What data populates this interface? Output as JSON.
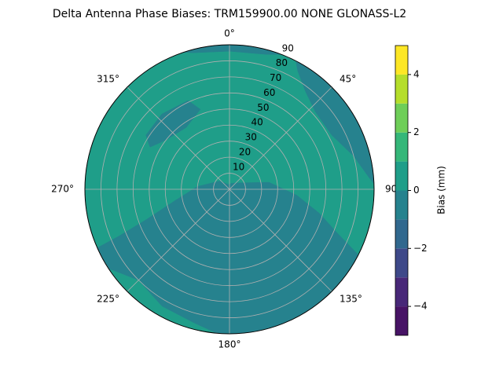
{
  "chart_data": {
    "type": "polar_contour",
    "title": "Delta Antenna Phase Biases: TRM159900.00    NONE GLONASS-L2",
    "rlim": [
      0,
      90
    ],
    "rticks": [
      10,
      20,
      30,
      40,
      50,
      60,
      70,
      80,
      90
    ],
    "theta_ticks": [
      {
        "value": 0,
        "label": "0°"
      },
      {
        "value": 45,
        "label": "45°"
      },
      {
        "value": 90,
        "label": "90°"
      },
      {
        "value": 135,
        "label": "135°"
      },
      {
        "value": 180,
        "label": "180°"
      },
      {
        "value": 225,
        "label": "225°"
      },
      {
        "value": 270,
        "label": "270°"
      },
      {
        "value": 315,
        "label": "315°"
      }
    ],
    "grid": true,
    "levels": [
      -5,
      -4,
      -3,
      -2,
      -1,
      0,
      1,
      2,
      3,
      4,
      5
    ],
    "level_colors": [
      "#471365",
      "#482878",
      "#3e4989",
      "#31688e",
      "#26828e",
      "#1f9e89",
      "#35b779",
      "#6ece58",
      "#b5de2b",
      "#fde725"
    ],
    "background_range": [
      0,
      1
    ],
    "contours": [
      {
        "range": [
          -1,
          0
        ],
        "polygon": [
          [
            20,
            4
          ],
          [
            60,
            8
          ],
          [
            80,
            25
          ],
          [
            95,
            42
          ],
          [
            105,
            58
          ],
          [
            112,
            72
          ],
          [
            118,
            95
          ],
          [
            130,
            95
          ],
          [
            150,
            95
          ],
          [
            170,
            95
          ],
          [
            185,
            90
          ],
          [
            195,
            86
          ],
          [
            210,
            84
          ],
          [
            225,
            80
          ],
          [
            235,
            88
          ],
          [
            240,
            95
          ],
          [
            246,
            92
          ],
          [
            247,
            75
          ],
          [
            250,
            55
          ],
          [
            258,
            35
          ],
          [
            275,
            20
          ],
          [
            310,
            8
          ],
          [
            350,
            3
          ]
        ]
      },
      {
        "range": [
          -1,
          0
        ],
        "polygon": [
          [
            25,
            95
          ],
          [
            30,
            85
          ],
          [
            38,
            77
          ],
          [
            48,
            72
          ],
          [
            62,
            72
          ],
          [
            75,
            80
          ],
          [
            85,
            87
          ],
          [
            92,
            95
          ],
          [
            70,
            95
          ],
          [
            50,
            95
          ]
        ]
      },
      {
        "range": [
          -1,
          0
        ],
        "polygon": [
          [
            335,
            95
          ],
          [
            345,
            88
          ],
          [
            0,
            86
          ],
          [
            15,
            87
          ],
          [
            28,
            95
          ],
          [
            10,
            95
          ],
          [
            350,
            95
          ]
        ]
      },
      {
        "range": [
          -1,
          0
        ],
        "polygon": [
          [
            298,
            56
          ],
          [
            308,
            50
          ],
          [
            325,
            47
          ],
          [
            340,
            53
          ],
          [
            335,
            61
          ],
          [
            318,
            63
          ],
          [
            303,
            62
          ]
        ]
      }
    ],
    "colorbar_label": "Bias (mm)",
    "colorbar_ticks": [
      {
        "value": -4,
        "label": "−4"
      },
      {
        "value": -2,
        "label": "−2"
      },
      0,
      2,
      4
    ]
  }
}
